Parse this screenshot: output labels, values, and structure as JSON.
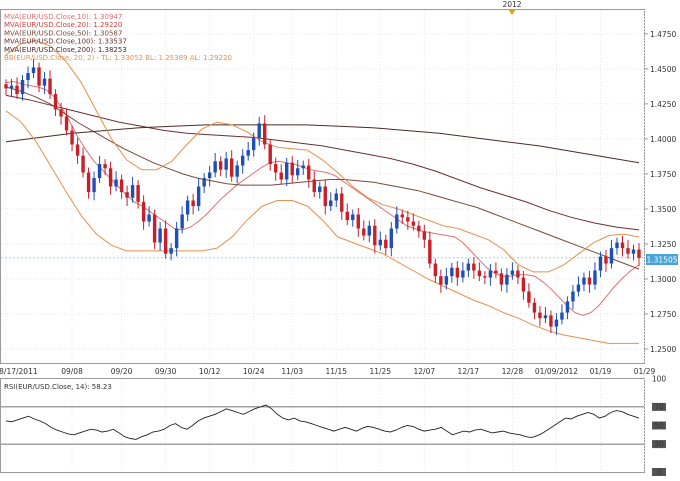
{
  "chart_data": {
    "type": "candlestick",
    "title": "",
    "top_label": "2012",
    "price_axis": {
      "ticks": [
        "1.4750",
        "1.4500",
        "1.4250",
        "1.4000",
        "1.3750",
        "1.3500",
        "1.3250",
        "1.3000",
        "1.2750",
        "1.2500"
      ],
      "tick_values": [
        1.475,
        1.45,
        1.425,
        1.4,
        1.375,
        1.35,
        1.325,
        1.3,
        1.275,
        1.25
      ],
      "ylim": [
        1.24,
        1.492
      ],
      "current_price_label": "1.31505",
      "current_price": 1.31505
    },
    "x_axis": {
      "labels": [
        "08/17/2011",
        "09/08",
        "09/20",
        "09/30",
        "10/12",
        "10/24",
        "11/03",
        "11/15",
        "11/25",
        "12/07",
        "12/17",
        "12/28",
        "01/09/2012",
        "01/19",
        "01/29"
      ],
      "label_index": [
        0,
        12,
        21,
        29,
        37,
        45,
        52,
        60,
        68,
        76,
        84,
        92,
        100,
        108,
        116
      ]
    },
    "legend": [
      {
        "text": "MVA(EUR/USD.Close,10): 1.30947",
        "color": "#e07070"
      },
      {
        "text": "MVA(EUR/USD.Close,20): 1.29220",
        "color": "#d04040"
      },
      {
        "text": "MVA(EUR/USD.Close,50): 1.30587",
        "color": "#7a4a3a"
      },
      {
        "text": "MVA(EUR/USD.Close,100): 1.33537",
        "color": "#6a3030"
      },
      {
        "text": "MVA(EUR/USD.Close,200): 1.38253",
        "color": "#4a2a2a"
      },
      {
        "text": "BB(EUR/USD.Close, 20, 2) -  TL: 1.33052  BL: 1.25389  AL: 1.29220",
        "color": "#e8904a"
      }
    ],
    "closes": [
      1.436,
      1.438,
      1.432,
      1.442,
      1.447,
      1.451,
      1.438,
      1.443,
      1.432,
      1.421,
      1.416,
      1.406,
      1.396,
      1.388,
      1.376,
      1.362,
      1.372,
      1.382,
      1.379,
      1.366,
      1.371,
      1.362,
      1.358,
      1.367,
      1.355,
      1.341,
      1.346,
      1.326,
      1.336,
      1.318,
      1.322,
      1.336,
      1.346,
      1.356,
      1.352,
      1.366,
      1.372,
      1.376,
      1.384,
      1.378,
      1.386,
      1.373,
      1.381,
      1.388,
      1.392,
      1.401,
      1.411,
      1.396,
      1.382,
      1.376,
      1.371,
      1.383,
      1.374,
      1.379,
      1.381,
      1.371,
      1.362,
      1.366,
      1.352,
      1.356,
      1.361,
      1.348,
      1.342,
      1.346,
      1.336,
      1.331,
      1.338,
      1.324,
      1.328,
      1.322,
      1.336,
      1.346,
      1.344,
      1.341,
      1.338,
      1.334,
      1.328,
      1.311,
      1.302,
      1.296,
      1.302,
      1.308,
      1.301,
      1.306,
      1.311,
      1.306,
      1.302,
      1.301,
      1.306,
      1.304,
      1.296,
      1.303,
      1.306,
      1.301,
      1.291,
      1.283,
      1.276,
      1.272,
      1.274,
      1.266,
      1.271,
      1.276,
      1.284,
      1.291,
      1.296,
      1.301,
      1.296,
      1.306,
      1.316,
      1.311,
      1.322,
      1.326,
      1.322,
      1.318,
      1.321,
      1.315
    ],
    "series_lines": [
      {
        "name": "mva10",
        "color": "#e07070",
        "values": [
          1.44,
          1.441,
          1.439,
          1.438,
          1.437,
          1.435,
          1.43,
          1.422,
          1.412,
          1.401,
          1.392,
          1.384,
          1.378,
          1.372,
          1.366,
          1.36,
          1.355,
          1.352,
          1.348,
          1.344,
          1.34,
          1.336,
          1.335,
          1.337,
          1.341,
          1.346,
          1.352,
          1.358,
          1.363,
          1.368,
          1.372,
          1.376,
          1.38,
          1.383,
          1.384,
          1.383,
          1.382,
          1.38,
          1.378,
          1.377,
          1.376,
          1.374,
          1.37,
          1.366,
          1.362,
          1.358,
          1.354,
          1.35,
          1.346,
          1.342,
          1.338,
          1.336,
          1.334,
          1.333,
          1.332,
          1.331,
          1.33,
          1.326,
          1.32,
          1.314,
          1.308,
          1.304,
          1.302,
          1.302,
          1.303,
          1.303,
          1.302,
          1.298,
          1.293,
          1.287,
          1.281,
          1.276,
          1.274,
          1.276,
          1.281,
          1.288,
          1.295,
          1.301,
          1.306,
          1.31
        ]
      },
      {
        "name": "mva50",
        "color": "#7a4a3a",
        "values": [
          1.437,
          1.434,
          1.43,
          1.425,
          1.418,
          1.411,
          1.405,
          1.399,
          1.393,
          1.388,
          1.383,
          1.379,
          1.375,
          1.372,
          1.37,
          1.368,
          1.367,
          1.367,
          1.367,
          1.368,
          1.369,
          1.37,
          1.371,
          1.371,
          1.37,
          1.369,
          1.367,
          1.365,
          1.363,
          1.36,
          1.357,
          1.354,
          1.351,
          1.347,
          1.343,
          1.339,
          1.335,
          1.331,
          1.327,
          1.323,
          1.319,
          1.315,
          1.311,
          1.307
        ]
      },
      {
        "name": "mva100",
        "color": "#6a3030",
        "values": [
          1.431,
          1.428,
          1.424,
          1.42,
          1.416,
          1.412,
          1.409,
          1.406,
          1.404,
          1.403,
          1.402,
          1.401,
          1.399,
          1.397,
          1.395,
          1.392,
          1.389,
          1.386,
          1.382,
          1.377,
          1.371,
          1.365,
          1.36,
          1.355,
          1.349,
          1.344,
          1.34,
          1.337,
          1.335
        ]
      },
      {
        "name": "mva200",
        "color": "#4a2a2a",
        "values": [
          1.398,
          1.401,
          1.404,
          1.406,
          1.408,
          1.409,
          1.41,
          1.41,
          1.41,
          1.41,
          1.409,
          1.408,
          1.406,
          1.404,
          1.401,
          1.398,
          1.395,
          1.391,
          1.387,
          1.383
        ]
      },
      {
        "name": "bb_top",
        "color": "#e8904a",
        "values": [
          1.46,
          1.468,
          1.47,
          1.466,
          1.455,
          1.44,
          1.42,
          1.4,
          1.385,
          1.378,
          1.378,
          1.384,
          1.396,
          1.407,
          1.412,
          1.41,
          1.405,
          1.398,
          1.394,
          1.393,
          1.392,
          1.385,
          1.376,
          1.366,
          1.358,
          1.353,
          1.35,
          1.346,
          1.342,
          1.338,
          1.336,
          1.332,
          1.328,
          1.321,
          1.31,
          1.305,
          1.305,
          1.31,
          1.318,
          1.326,
          1.331,
          1.332,
          1.33
        ]
      },
      {
        "name": "bb_bottom",
        "color": "#e8904a",
        "values": [
          1.42,
          1.412,
          1.398,
          1.38,
          1.362,
          1.345,
          1.332,
          1.324,
          1.32,
          1.32,
          1.32,
          1.32,
          1.32,
          1.32,
          1.322,
          1.33,
          1.342,
          1.352,
          1.356,
          1.356,
          1.352,
          1.342,
          1.33,
          1.326,
          1.322,
          1.318,
          1.312,
          1.306,
          1.3,
          1.295,
          1.29,
          1.285,
          1.281,
          1.276,
          1.272,
          1.267,
          1.263,
          1.26,
          1.258,
          1.256,
          1.254,
          1.254,
          1.254
        ]
      }
    ],
    "rsi": {
      "label": "RSI(EUR/USD.Close, 14): 58.23",
      "ticks": [
        "100",
        "70",
        "50",
        "30",
        "0"
      ],
      "tick_values": [
        100,
        70,
        50,
        30,
        0
      ],
      "ylim": [
        0,
        100
      ],
      "values": [
        55,
        54,
        56,
        58,
        60,
        57,
        55,
        52,
        48,
        45,
        43,
        41,
        40,
        42,
        44,
        46,
        45,
        43,
        44,
        46,
        42,
        38,
        36,
        35,
        38,
        40,
        43,
        44,
        46,
        50,
        52,
        48,
        46,
        50,
        55,
        58,
        60,
        62,
        65,
        68,
        66,
        64,
        62,
        65,
        68,
        70,
        72,
        68,
        62,
        58,
        56,
        58,
        55,
        54,
        52,
        50,
        48,
        46,
        44,
        46,
        48,
        46,
        44,
        47,
        49,
        48,
        46,
        44,
        43,
        45,
        48,
        50,
        49,
        46,
        44,
        45,
        46,
        48,
        44,
        40,
        42,
        44,
        43,
        45,
        46,
        44,
        42,
        43,
        44,
        42,
        41,
        40,
        38,
        37,
        39,
        42,
        46,
        50,
        54,
        58,
        57,
        60,
        62,
        64,
        62,
        58,
        60,
        64,
        66,
        65,
        62,
        60,
        58
      ]
    }
  }
}
